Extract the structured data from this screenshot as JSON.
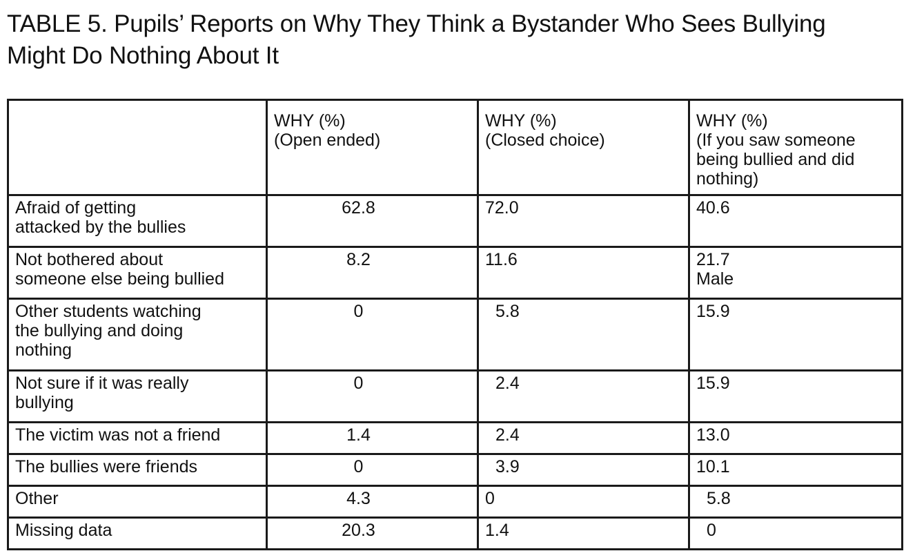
{
  "title": {
    "line1": "TABLE 5. Pupils’ Reports on Why They Think a Bystander Who Sees Bullying",
    "line2": "Might Do Nothing About It"
  },
  "columns": [
    {
      "lines": [
        ""
      ]
    },
    {
      "lines": [
        "WHY (%)",
        "(Open ended)"
      ]
    },
    {
      "lines": [
        "WHY (%)",
        "(Closed choice)"
      ]
    },
    {
      "lines": [
        "WHY (%)",
        "(If you saw someone",
        "being bullied and did",
        "nothing)"
      ]
    }
  ],
  "rows": [
    {
      "reason": [
        "Afraid of getting",
        "attacked by the bullies"
      ],
      "open_ended": "62.8",
      "closed_choice": "72.0",
      "if_saw": [
        "40.6"
      ]
    },
    {
      "reason": [
        "Not bothered about",
        "someone else being bullied"
      ],
      "open_ended": "8.2",
      "closed_choice": "11.6",
      "if_saw": [
        "21.7",
        "Male"
      ]
    },
    {
      "reason": [
        "Other students watching",
        "the bullying and doing",
        "nothing"
      ],
      "open_ended": "0",
      "closed_choice": "5.8",
      "if_saw": [
        "15.9"
      ]
    },
    {
      "reason": [
        "Not sure if it was really",
        "bullying"
      ],
      "open_ended": "0",
      "closed_choice": "2.4",
      "if_saw": [
        "15.9"
      ]
    },
    {
      "reason": [
        "The victim was not a friend"
      ],
      "open_ended": "1.4",
      "closed_choice": "2.4",
      "if_saw": [
        "13.0"
      ]
    },
    {
      "reason": [
        "The bullies were friends"
      ],
      "open_ended": "0",
      "closed_choice": "3.9",
      "if_saw": [
        "10.1"
      ]
    },
    {
      "reason": [
        "Other"
      ],
      "open_ended": "4.3",
      "closed_choice": "0",
      "if_saw": [
        "5.8"
      ]
    },
    {
      "reason": [
        "Missing data"
      ],
      "open_ended": "20.3",
      "closed_choice": "1.4",
      "if_saw": [
        "0"
      ]
    }
  ]
}
